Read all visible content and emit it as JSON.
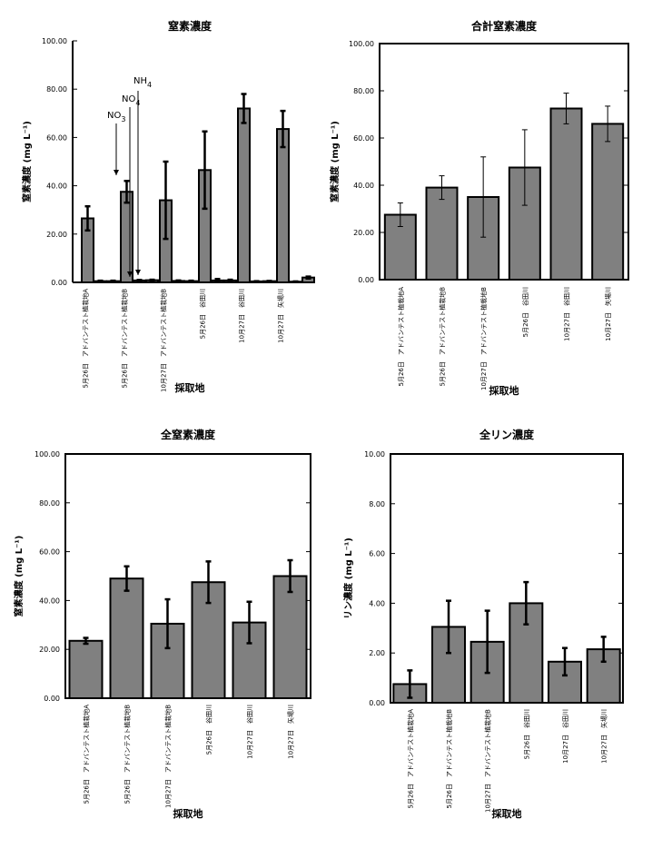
{
  "chart_data": [
    {
      "type": "bar",
      "title": "窒素濃度",
      "ylabel": "窒素濃度 (mg  L⁻¹)",
      "xlabel": "",
      "ylim": [
        0,
        100
      ],
      "yticks": [
        "0.00",
        "20.00",
        "40.00",
        "60.00",
        "80.00",
        "100.00"
      ],
      "grid": false,
      "categories": [
        "5月26日　アドバンテスト植栽地A",
        "5月26日　アドバンテスト植栽地B",
        "10月27日　アドバンテスト植栽地B",
        "5月26日　谷田川",
        "10月27日　谷田川",
        "10月27日　矢場川"
      ],
      "series": [
        {
          "name": "NO3",
          "values": [
            26.5,
            37.5,
            34.0,
            46.5,
            72.0,
            63.5
          ],
          "errors": [
            5.0,
            4.5,
            16.0,
            16.0,
            6.0,
            7.5
          ]
        },
        {
          "name": "NO4",
          "values": [
            0.5,
            0.8,
            0.6,
            0.8,
            0.4,
            0.3
          ],
          "errors": [
            0.2,
            0.2,
            0.2,
            0.6,
            0.1,
            0.1
          ]
        },
        {
          "name": "NH4",
          "values": [
            0.5,
            0.9,
            0.5,
            0.8,
            0.5,
            2.0
          ],
          "errors": [
            0.2,
            0.2,
            0.2,
            0.3,
            0.1,
            0.4
          ]
        }
      ],
      "annotations": [
        {
          "text": "NO",
          "sub": "3"
        },
        {
          "text": "NO",
          "sub": "4"
        },
        {
          "text": "NH",
          "sub": "4"
        }
      ],
      "category_axis_label": "採取地"
    },
    {
      "type": "bar",
      "title": "合計窒素濃度",
      "ylabel": "窒素濃度 (mg  L⁻¹)",
      "xlabel": "採取地",
      "ylim": [
        0,
        100
      ],
      "yticks": [
        "0.00",
        "20.00",
        "40.00",
        "60.00",
        "80.00",
        "100.00"
      ],
      "grid": false,
      "categories": [
        "5月26日　アドバンテスト植栽地A",
        "5月26日　アドバンテスト植栽地B",
        "10月27日　アドバンテスト植栽地B",
        "5月26日　谷田川",
        "10月27日　谷田川",
        "10月27日　矢場川"
      ],
      "values": [
        27.5,
        39.0,
        35.0,
        47.5,
        72.5,
        66.0
      ],
      "errors": [
        5.0,
        5.0,
        17.0,
        16.0,
        6.5,
        7.5
      ]
    },
    {
      "type": "bar",
      "title": "全窒素濃度",
      "ylabel": "窒素濃度 (mg  L⁻¹)",
      "xlabel": "採取地",
      "ylim": [
        0,
        100
      ],
      "yticks": [
        "0.00",
        "20.00",
        "40.00",
        "60.00",
        "80.00",
        "100.00"
      ],
      "grid": false,
      "categories": [
        "5月26日　アドバンテスト植栽地A",
        "5月26日　アドバンテスト植栽地B",
        "10月27日　アドバンテスト植栽地B",
        "5月26日　谷田川",
        "10月27日　谷田川",
        "10月27日　矢場川"
      ],
      "values": [
        23.5,
        49.0,
        30.5,
        47.5,
        31.0,
        50.0
      ],
      "errors": [
        1.2,
        5.0,
        10.0,
        8.5,
        8.5,
        6.5
      ]
    },
    {
      "type": "bar",
      "title": "全リン濃度",
      "ylabel": "リン濃度 (mg  L⁻¹)",
      "xlabel": "採取地",
      "ylim": [
        0,
        10
      ],
      "yticks": [
        "0.00",
        "2.00",
        "4.00",
        "6.00",
        "8.00",
        "10.00"
      ],
      "grid": false,
      "categories": [
        "5月26日　アドバンテスト植栽地A",
        "5月26日　アドバンテスト植栽地B",
        "10月27日　アドバンテスト植栽地B",
        "5月26日　谷田川",
        "10月27日　谷田川",
        "10月27日　矢場川"
      ],
      "values": [
        0.75,
        3.05,
        2.45,
        4.0,
        1.65,
        2.15
      ],
      "errors": [
        0.55,
        1.05,
        1.25,
        0.85,
        0.55,
        0.5
      ]
    }
  ],
  "colors": {
    "bar_fill": "#808080",
    "axis": "#000000"
  }
}
